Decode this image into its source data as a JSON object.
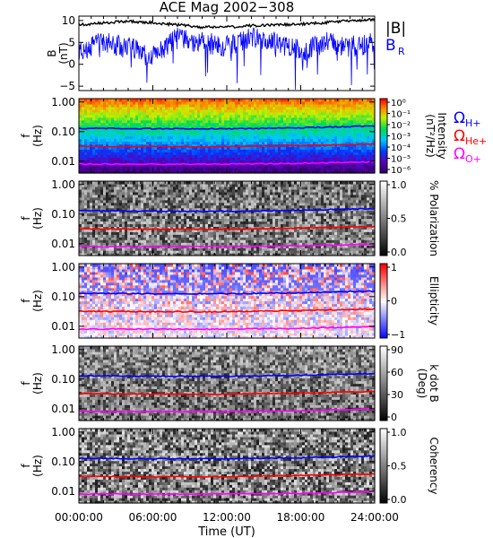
{
  "title": "ACE Mag 2002−308",
  "xlabel": "Time (UT)",
  "xticks": [
    "00:00:00",
    "06:00:00",
    "12:00:00",
    "18:00:00",
    "24:00:00"
  ],
  "freq_ticks": [
    "1.00",
    "0.10",
    "0.01"
  ],
  "freq_label_top": "f",
  "freq_label_unit": "(Hz)",
  "bfield_ylabel_top": "B",
  "bfield_ylabel_unit": "(nT)",
  "bfield_yticks": [
    "10",
    "5",
    "0",
    "−5"
  ],
  "legend_b": {
    "mag": "|B|",
    "br": "B",
    "br_sub": "R",
    "mag_color": "#000000",
    "br_color": "#0000ff"
  },
  "gyro_labels": [
    {
      "sym": "Ω",
      "sub": "H+",
      "color": "#0000ff"
    },
    {
      "sym": "Ω",
      "sub": "He+",
      "color": "#ff0000"
    },
    {
      "sym": "Ω",
      "sub": "O+",
      "color": "#ff00ff"
    }
  ],
  "colorbars": [
    {
      "label_line1": "Intensity",
      "label_line2": "(nT²/Hz)",
      "ticks": [
        "10⁰",
        "10⁻¹",
        "10⁻²",
        "10⁻³",
        "10⁻⁴",
        "10⁻⁵",
        "10⁻⁶"
      ]
    },
    {
      "label_line1": "% Polarization",
      "label_line2": "",
      "ticks": [
        "1.0",
        "0.5",
        "0.0"
      ]
    },
    {
      "label_line1": "Ellipticity",
      "label_line2": "",
      "ticks": [
        "1",
        "0",
        "−1"
      ]
    },
    {
      "label_line1": "k dot B",
      "label_line2": "(Deg)",
      "ticks": [
        "90",
        "60",
        "30",
        "0"
      ]
    },
    {
      "label_line1": "Coherency",
      "label_line2": "",
      "ticks": [
        "1.0",
        "0.5",
        "0.0"
      ]
    }
  ],
  "chart_data": [
    {
      "type": "line",
      "panel": "magnetic field",
      "x_unit": "hours UT",
      "xlim": [
        0,
        24
      ],
      "ylim": [
        -6,
        11
      ],
      "series": [
        {
          "name": "|B|",
          "x": [
            0,
            2,
            4,
            6,
            8,
            10,
            12,
            14,
            16,
            18,
            20,
            22,
            24
          ],
          "values": [
            9,
            9.5,
            9.8,
            9.5,
            9,
            8.5,
            8.5,
            8.8,
            9,
            9.2,
            9.5,
            10,
            10.2
          ]
        },
        {
          "name": "B_R",
          "x": [
            0,
            2,
            4,
            6,
            8,
            10,
            12,
            14,
            16,
            18,
            20,
            22,
            24
          ],
          "values": [
            3,
            5,
            4,
            2,
            6,
            5,
            4,
            6,
            5,
            3,
            5,
            4,
            5
          ]
        }
      ]
    },
    {
      "type": "heatmap",
      "panel": "Intensity",
      "y_scale": "log",
      "ylim_hz": [
        0.004,
        1.3
      ],
      "color_range": [
        1e-06,
        1
      ],
      "gyrofrequency_lines_hz": {
        "H+": {
          "x": [
            0,
            6,
            12,
            18,
            24
          ],
          "values": [
            0.13,
            0.125,
            0.125,
            0.135,
            0.155
          ]
        },
        "He+": {
          "x": [
            0,
            6,
            12,
            18,
            24
          ],
          "values": [
            0.032,
            0.031,
            0.031,
            0.034,
            0.038
          ]
        },
        "O+": {
          "x": [
            0,
            6,
            12,
            18,
            24
          ],
          "values": [
            0.008,
            0.008,
            0.008,
            0.0085,
            0.0097
          ]
        }
      }
    },
    {
      "type": "heatmap",
      "panel": "% Polarization",
      "color_range": [
        0,
        1
      ]
    },
    {
      "type": "heatmap",
      "panel": "Ellipticity",
      "color_range": [
        -1,
        1
      ]
    },
    {
      "type": "heatmap",
      "panel": "k dot B",
      "color_range": [
        0,
        90
      ]
    },
    {
      "type": "heatmap",
      "panel": "Coherency",
      "color_range": [
        0,
        1
      ]
    }
  ]
}
